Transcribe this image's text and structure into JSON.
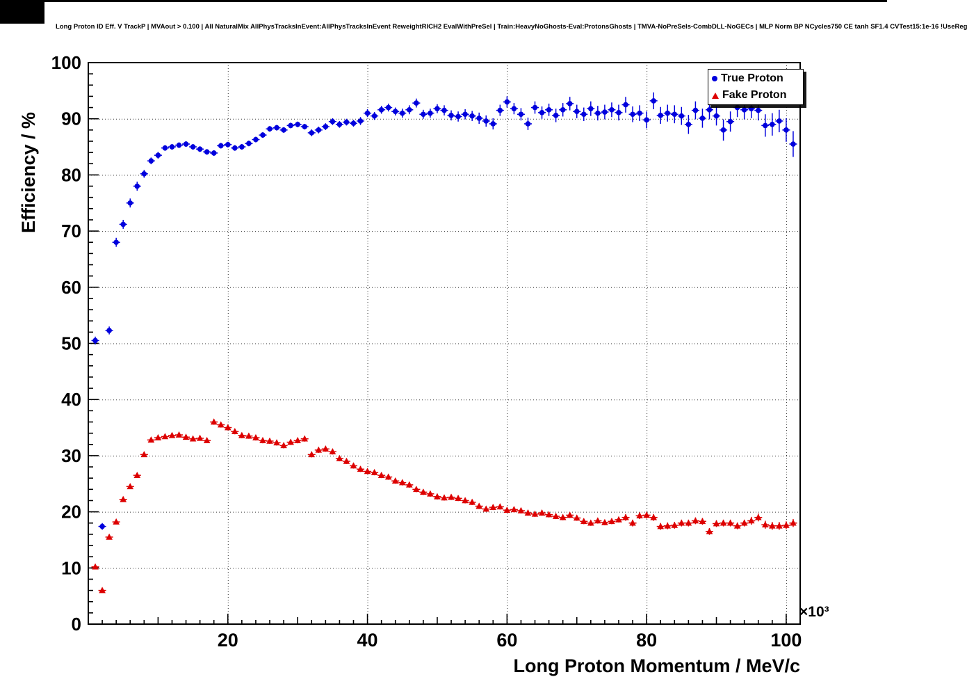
{
  "chart_data": {
    "type": "scatter",
    "title": "Long Proton ID Eff. V TrackP | MVAout > 0.100 | All NaturalMix AllPhysTracksInEvent:AllPhysTracksInEvent ReweightRICH2 EvalWithPreSel | Train:HeavyNoGhosts-Eval:ProtonsGhosts | TMVA-NoPreSels-CombDLL-NoGECs | MLP Norm BP NCycles750 CE tanh SF1.4 CVTest15:1e-16 !UseReg",
    "grid": true,
    "legend_position": "top-right",
    "x_axis": {
      "title": "Long Proton Momentum / MeV/c",
      "exponent_label": "×10³",
      "min": 0,
      "max": 102,
      "minor_step": 2,
      "units_scale": 1000,
      "ticks": [
        {
          "value": 20,
          "label": "20"
        },
        {
          "value": 40,
          "label": "40"
        },
        {
          "value": 60,
          "label": "60"
        },
        {
          "value": 80,
          "label": "80"
        },
        {
          "value": 100,
          "label": "100"
        }
      ]
    },
    "y_axis": {
      "title": "Efficiency / %",
      "min": 0,
      "max": 100,
      "minor_step": 2,
      "ticks": [
        {
          "value": 0,
          "label": "0"
        },
        {
          "value": 10,
          "label": "10"
        },
        {
          "value": 20,
          "label": "20"
        },
        {
          "value": 30,
          "label": "30"
        },
        {
          "value": 40,
          "label": "40"
        },
        {
          "value": 50,
          "label": "50"
        },
        {
          "value": 60,
          "label": "60"
        },
        {
          "value": 70,
          "label": "70"
        },
        {
          "value": 80,
          "label": "80"
        },
        {
          "value": 90,
          "label": "90"
        },
        {
          "value": 100,
          "label": "100"
        }
      ]
    },
    "series": [
      {
        "name": "True Proton",
        "marker": "circle",
        "color": "#0000dd",
        "points": [
          [
            1,
            50.5,
            0.7
          ],
          [
            2,
            17.4,
            0.6
          ],
          [
            3,
            52.3,
            0.7
          ],
          [
            4,
            68.0,
            0.8
          ],
          [
            5,
            71.2,
            0.8
          ],
          [
            6,
            75.0,
            0.8
          ],
          [
            7,
            78.0,
            0.8
          ],
          [
            8,
            80.2,
            0.7
          ],
          [
            9,
            82.5,
            0.6
          ],
          [
            10,
            83.5,
            0.6
          ],
          [
            11,
            84.8,
            0.5
          ],
          [
            12,
            85.0,
            0.5
          ],
          [
            13,
            85.3,
            0.5
          ],
          [
            14,
            85.5,
            0.5
          ],
          [
            15,
            85.0,
            0.5
          ],
          [
            16,
            84.6,
            0.5
          ],
          [
            17,
            84.1,
            0.5
          ],
          [
            18,
            83.9,
            0.5
          ],
          [
            19,
            85.2,
            0.5
          ],
          [
            20,
            85.4,
            0.5
          ],
          [
            21,
            84.8,
            0.5
          ],
          [
            22,
            85.0,
            0.5
          ],
          [
            23,
            85.6,
            0.5
          ],
          [
            24,
            86.3,
            0.5
          ],
          [
            25,
            87.1,
            0.5
          ],
          [
            26,
            88.2,
            0.5
          ],
          [
            27,
            88.4,
            0.5
          ],
          [
            28,
            88.0,
            0.5
          ],
          [
            29,
            88.8,
            0.5
          ],
          [
            30,
            89.0,
            0.5
          ],
          [
            31,
            88.6,
            0.5
          ],
          [
            32,
            87.5,
            0.6
          ],
          [
            33,
            88.0,
            0.6
          ],
          [
            34,
            88.6,
            0.6
          ],
          [
            35,
            89.5,
            0.6
          ],
          [
            36,
            89.0,
            0.6
          ],
          [
            37,
            89.4,
            0.6
          ],
          [
            38,
            89.2,
            0.6
          ],
          [
            39,
            89.6,
            0.7
          ],
          [
            40,
            91.0,
            0.7
          ],
          [
            41,
            90.5,
            0.7
          ],
          [
            42,
            91.6,
            0.7
          ],
          [
            43,
            92.0,
            0.7
          ],
          [
            44,
            91.3,
            0.7
          ],
          [
            45,
            91.0,
            0.8
          ],
          [
            46,
            91.6,
            0.8
          ],
          [
            47,
            92.8,
            0.8
          ],
          [
            48,
            90.8,
            0.8
          ],
          [
            49,
            91.0,
            0.8
          ],
          [
            50,
            91.8,
            0.8
          ],
          [
            51,
            91.5,
            0.9
          ],
          [
            52,
            90.6,
            0.9
          ],
          [
            53,
            90.4,
            0.9
          ],
          [
            54,
            90.8,
            0.9
          ],
          [
            55,
            90.5,
            0.9
          ],
          [
            56,
            90.1,
            1.0
          ],
          [
            57,
            89.6,
            1.0
          ],
          [
            58,
            89.1,
            1.0
          ],
          [
            59,
            91.5,
            1.0
          ],
          [
            60,
            93.0,
            1.0
          ],
          [
            61,
            91.8,
            1.0
          ],
          [
            62,
            90.8,
            1.1
          ],
          [
            63,
            89.1,
            1.1
          ],
          [
            64,
            92.0,
            1.1
          ],
          [
            65,
            91.1,
            1.1
          ],
          [
            66,
            91.6,
            1.1
          ],
          [
            67,
            90.6,
            1.2
          ],
          [
            68,
            91.6,
            1.2
          ],
          [
            69,
            92.7,
            1.2
          ],
          [
            70,
            91.3,
            1.2
          ],
          [
            71,
            90.8,
            1.2
          ],
          [
            72,
            91.8,
            1.3
          ],
          [
            73,
            91.0,
            1.3
          ],
          [
            74,
            91.2,
            1.3
          ],
          [
            75,
            91.6,
            1.3
          ],
          [
            76,
            91.1,
            1.4
          ],
          [
            77,
            92.5,
            1.4
          ],
          [
            78,
            90.8,
            1.4
          ],
          [
            79,
            91.0,
            1.4
          ],
          [
            80,
            89.8,
            1.5
          ],
          [
            81,
            93.2,
            1.5
          ],
          [
            82,
            90.6,
            1.5
          ],
          [
            83,
            91.0,
            1.5
          ],
          [
            84,
            90.8,
            1.6
          ],
          [
            85,
            90.5,
            1.6
          ],
          [
            86,
            89.0,
            1.7
          ],
          [
            87,
            91.5,
            1.6
          ],
          [
            88,
            90.1,
            1.7
          ],
          [
            89,
            91.6,
            1.7
          ],
          [
            90,
            90.5,
            1.7
          ],
          [
            91,
            88.0,
            1.9
          ],
          [
            92,
            89.5,
            1.8
          ],
          [
            93,
            92.0,
            1.7
          ],
          [
            94,
            91.6,
            1.7
          ],
          [
            95,
            91.8,
            1.7
          ],
          [
            96,
            91.5,
            1.8
          ],
          [
            97,
            88.8,
            2.0
          ],
          [
            98,
            89.0,
            2.0
          ],
          [
            99,
            89.6,
            2.0
          ],
          [
            100,
            88.0,
            2.1
          ],
          [
            101,
            85.5,
            2.3
          ]
        ]
      },
      {
        "name": "Fake Proton",
        "marker": "triangle",
        "color": "#dd0000",
        "points": [
          [
            1,
            10.2,
            0.4
          ],
          [
            2,
            6.0,
            0.3
          ],
          [
            3,
            15.5,
            0.4
          ],
          [
            4,
            18.2,
            0.4
          ],
          [
            5,
            22.2,
            0.4
          ],
          [
            6,
            24.5,
            0.4
          ],
          [
            7,
            26.5,
            0.4
          ],
          [
            8,
            30.2,
            0.4
          ],
          [
            9,
            32.8,
            0.4
          ],
          [
            10,
            33.2,
            0.4
          ],
          [
            11,
            33.4,
            0.4
          ],
          [
            12,
            33.6,
            0.4
          ],
          [
            13,
            33.7,
            0.4
          ],
          [
            14,
            33.3,
            0.4
          ],
          [
            15,
            33.0,
            0.4
          ],
          [
            16,
            33.1,
            0.4
          ],
          [
            17,
            32.7,
            0.4
          ],
          [
            18,
            36.0,
            0.5
          ],
          [
            19,
            35.5,
            0.5
          ],
          [
            20,
            35.0,
            0.5
          ],
          [
            21,
            34.3,
            0.5
          ],
          [
            22,
            33.6,
            0.5
          ],
          [
            23,
            33.5,
            0.5
          ],
          [
            24,
            33.2,
            0.5
          ],
          [
            25,
            32.7,
            0.5
          ],
          [
            26,
            32.6,
            0.5
          ],
          [
            27,
            32.3,
            0.5
          ],
          [
            28,
            31.8,
            0.5
          ],
          [
            29,
            32.4,
            0.5
          ],
          [
            30,
            32.7,
            0.5
          ],
          [
            31,
            33.0,
            0.5
          ],
          [
            32,
            30.2,
            0.5
          ],
          [
            33,
            31.0,
            0.5
          ],
          [
            34,
            31.2,
            0.5
          ],
          [
            35,
            30.7,
            0.5
          ],
          [
            36,
            29.5,
            0.5
          ],
          [
            37,
            29.0,
            0.5
          ],
          [
            38,
            28.2,
            0.5
          ],
          [
            39,
            27.6,
            0.5
          ],
          [
            40,
            27.2,
            0.5
          ],
          [
            41,
            27.0,
            0.5
          ],
          [
            42,
            26.5,
            0.5
          ],
          [
            43,
            26.2,
            0.5
          ],
          [
            44,
            25.5,
            0.5
          ],
          [
            45,
            25.2,
            0.5
          ],
          [
            46,
            24.8,
            0.5
          ],
          [
            47,
            24.0,
            0.5
          ],
          [
            48,
            23.5,
            0.5
          ],
          [
            49,
            23.2,
            0.5
          ],
          [
            50,
            22.7,
            0.5
          ],
          [
            51,
            22.5,
            0.5
          ],
          [
            52,
            22.6,
            0.5
          ],
          [
            53,
            22.4,
            0.5
          ],
          [
            54,
            22.0,
            0.5
          ],
          [
            55,
            21.7,
            0.5
          ],
          [
            56,
            21.0,
            0.5
          ],
          [
            57,
            20.5,
            0.5
          ],
          [
            58,
            20.8,
            0.5
          ],
          [
            59,
            20.9,
            0.5
          ],
          [
            60,
            20.3,
            0.5
          ],
          [
            61,
            20.4,
            0.5
          ],
          [
            62,
            20.2,
            0.5
          ],
          [
            63,
            19.8,
            0.5
          ],
          [
            64,
            19.6,
            0.5
          ],
          [
            65,
            19.8,
            0.5
          ],
          [
            66,
            19.5,
            0.5
          ],
          [
            67,
            19.2,
            0.5
          ],
          [
            68,
            19.0,
            0.5
          ],
          [
            69,
            19.4,
            0.5
          ],
          [
            70,
            18.9,
            0.5
          ],
          [
            71,
            18.3,
            0.5
          ],
          [
            72,
            18.0,
            0.5
          ],
          [
            73,
            18.4,
            0.5
          ],
          [
            74,
            18.1,
            0.5
          ],
          [
            75,
            18.3,
            0.5
          ],
          [
            76,
            18.6,
            0.5
          ],
          [
            77,
            19.0,
            0.6
          ],
          [
            78,
            18.0,
            0.6
          ],
          [
            79,
            19.3,
            0.6
          ],
          [
            80,
            19.4,
            0.6
          ],
          [
            81,
            19.0,
            0.6
          ],
          [
            82,
            17.4,
            0.6
          ],
          [
            83,
            17.5,
            0.6
          ],
          [
            84,
            17.6,
            0.6
          ],
          [
            85,
            18.0,
            0.6
          ],
          [
            86,
            18.0,
            0.6
          ],
          [
            87,
            18.4,
            0.6
          ],
          [
            88,
            18.3,
            0.6
          ],
          [
            89,
            16.5,
            0.6
          ],
          [
            90,
            17.9,
            0.6
          ],
          [
            91,
            18.0,
            0.6
          ],
          [
            92,
            18.0,
            0.6
          ],
          [
            93,
            17.5,
            0.6
          ],
          [
            94,
            18.0,
            0.6
          ],
          [
            95,
            18.4,
            0.7
          ],
          [
            96,
            19.0,
            0.7
          ],
          [
            97,
            17.7,
            0.7
          ],
          [
            98,
            17.5,
            0.7
          ],
          [
            99,
            17.5,
            0.7
          ],
          [
            100,
            17.6,
            0.7
          ],
          [
            101,
            18.0,
            0.7
          ]
        ]
      }
    ]
  }
}
